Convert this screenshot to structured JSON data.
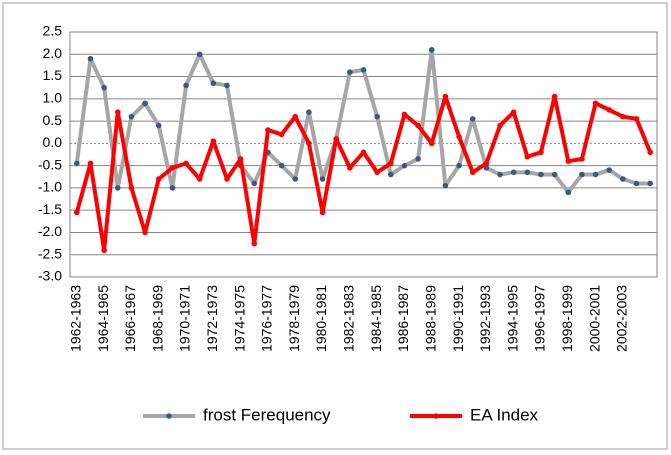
{
  "chart_data": {
    "type": "line",
    "categories": [
      "1962-1963",
      null,
      "1964-1965",
      null,
      "1966-1967",
      null,
      "1968-1969",
      null,
      "1970-1971",
      null,
      "1972-1973",
      null,
      "1974-1975",
      null,
      "1976-1977",
      null,
      "1978-1979",
      null,
      "1980-1981",
      null,
      "1982-1983",
      null,
      "1984-1985",
      null,
      "1986-1987",
      null,
      "1988-1989",
      null,
      "1990-1991",
      null,
      "1992-1993",
      null,
      "1994-1995",
      null,
      "1996-1997",
      null,
      "1998-1999",
      null,
      "2000-2001",
      null,
      "2002-2003",
      null,
      null
    ],
    "series": [
      {
        "name": "frost Ferequency",
        "color": "#a6a6a6",
        "marker_color": "#3b5a7f",
        "values": [
          -0.45,
          1.9,
          1.25,
          -1.0,
          0.6,
          0.9,
          0.4,
          -1.0,
          1.3,
          2.0,
          1.35,
          1.3,
          -0.5,
          -0.9,
          -0.2,
          -0.5,
          -0.8,
          0.7,
          -0.8,
          0.1,
          1.6,
          1.65,
          0.6,
          -0.7,
          -0.5,
          -0.35,
          2.1,
          -0.95,
          -0.5,
          0.55,
          -0.55,
          -0.7,
          -0.65,
          -0.65,
          -0.7,
          -0.7,
          -1.1,
          -0.7,
          -0.7,
          -0.6,
          -0.8,
          -0.9,
          -0.9
        ]
      },
      {
        "name": "EA Index",
        "color": "#ff0000",
        "marker_color": "#ff0000",
        "values": [
          -1.55,
          -0.45,
          -2.4,
          0.7,
          -1.0,
          -2.0,
          -0.8,
          -0.55,
          -0.45,
          -0.8,
          0.05,
          -0.8,
          -0.35,
          -2.25,
          0.3,
          0.2,
          0.6,
          0.0,
          -1.55,
          0.1,
          -0.55,
          -0.2,
          -0.65,
          -0.45,
          0.65,
          0.4,
          0.0,
          1.05,
          0.15,
          -0.65,
          -0.45,
          0.4,
          0.7,
          -0.3,
          -0.2,
          1.05,
          -0.4,
          -0.35,
          0.9,
          0.75,
          0.6,
          0.55,
          -0.2
        ]
      }
    ],
    "ylim": [
      -3,
      2.5
    ],
    "yticks": [
      {
        "value": -3,
        "label": "-3.0"
      },
      -2.5,
      {
        "value": -2,
        "label": "-2.0"
      },
      -1.5,
      {
        "value": -1,
        "label": "-1.0"
      },
      -0.5,
      {
        "value": 0,
        "label": "0.0"
      },
      0.5,
      {
        "value": 1,
        "label": "1.0"
      },
      1.5,
      {
        "value": 2,
        "label": "2.0"
      },
      2.5
    ],
    "grid": true,
    "legend": "bottom"
  }
}
